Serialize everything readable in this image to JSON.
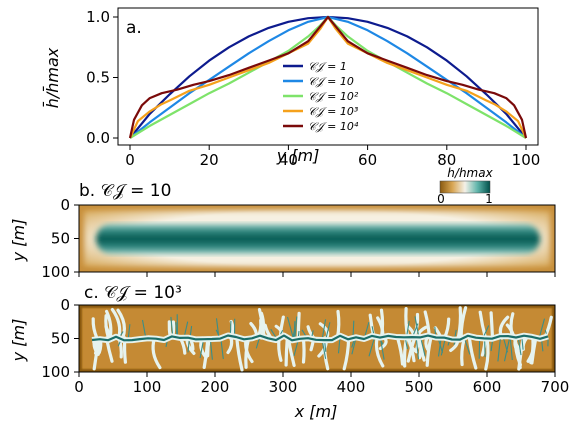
{
  "chart_data": [
    {
      "type": "line",
      "panel_label": "a.",
      "xlabel": "y [m]",
      "ylabel": "h̄/h̄max",
      "xlim": [
        0,
        100
      ],
      "ylim": [
        0,
        1
      ],
      "x_ticks": [
        "0",
        "20",
        "40",
        "60",
        "80",
        "100"
      ],
      "y_ticks": [
        "0.0",
        "0.5",
        "1.0"
      ],
      "legend_placement": "center",
      "series": [
        {
          "name": "𝒞𝒥 = 1",
          "color": "#0d1b8e",
          "x": [
            0,
            5,
            10,
            15,
            20,
            25,
            30,
            35,
            40,
            45,
            50,
            55,
            60,
            65,
            70,
            75,
            80,
            85,
            90,
            95,
            100
          ],
          "y": [
            0,
            0.2,
            0.36,
            0.51,
            0.64,
            0.75,
            0.84,
            0.91,
            0.96,
            0.99,
            1.0,
            0.99,
            0.96,
            0.91,
            0.84,
            0.75,
            0.64,
            0.51,
            0.36,
            0.2,
            0
          ]
        },
        {
          "name": "𝒞𝒥 = 10",
          "color": "#1e88e5",
          "x": [
            0,
            5,
            10,
            15,
            20,
            25,
            30,
            35,
            40,
            45,
            50,
            55,
            60,
            65,
            70,
            75,
            80,
            85,
            90,
            95,
            100
          ],
          "y": [
            0,
            0.13,
            0.25,
            0.37,
            0.48,
            0.59,
            0.7,
            0.8,
            0.89,
            0.96,
            1.0,
            0.96,
            0.89,
            0.8,
            0.7,
            0.59,
            0.48,
            0.37,
            0.25,
            0.13,
            0
          ]
        },
        {
          "name": "𝒞𝒥 = 10²",
          "color": "#7ee36a",
          "x": [
            0,
            5,
            10,
            15,
            20,
            25,
            30,
            35,
            40,
            45,
            48,
            50,
            52,
            55,
            60,
            65,
            70,
            75,
            80,
            85,
            90,
            95,
            100
          ],
          "y": [
            0,
            0.1,
            0.19,
            0.28,
            0.37,
            0.45,
            0.54,
            0.63,
            0.72,
            0.84,
            0.93,
            1.0,
            0.93,
            0.84,
            0.72,
            0.63,
            0.54,
            0.45,
            0.37,
            0.28,
            0.19,
            0.1,
            0
          ]
        },
        {
          "name": "𝒞𝒥 = 10³",
          "color": "#f5a11c",
          "x": [
            0,
            2,
            5,
            8,
            10,
            15,
            20,
            25,
            30,
            35,
            40,
            45,
            48,
            50,
            52,
            55,
            60,
            65,
            70,
            75,
            80,
            85,
            90,
            92,
            95,
            98,
            100
          ],
          "y": [
            0,
            0.14,
            0.22,
            0.28,
            0.31,
            0.39,
            0.44,
            0.5,
            0.56,
            0.62,
            0.7,
            0.78,
            0.9,
            1.0,
            0.9,
            0.78,
            0.7,
            0.62,
            0.56,
            0.5,
            0.44,
            0.39,
            0.31,
            0.28,
            0.22,
            0.14,
            0
          ]
        },
        {
          "name": "𝒞𝒥 = 10⁴",
          "color": "#7a0a0a",
          "x": [
            0,
            1,
            3,
            5,
            8,
            12,
            16,
            20,
            25,
            30,
            35,
            40,
            45,
            48,
            50,
            52,
            55,
            60,
            65,
            70,
            75,
            80,
            84,
            88,
            92,
            95,
            97,
            99,
            100
          ],
          "y": [
            0,
            0.15,
            0.27,
            0.33,
            0.37,
            0.4,
            0.44,
            0.47,
            0.52,
            0.58,
            0.64,
            0.7,
            0.8,
            0.92,
            1.0,
            0.92,
            0.8,
            0.7,
            0.64,
            0.58,
            0.52,
            0.47,
            0.44,
            0.4,
            0.37,
            0.33,
            0.27,
            0.15,
            0
          ]
        }
      ]
    },
    {
      "type": "heatmap",
      "panel_label": "b. 𝒞𝒥 = 10",
      "ylabel": "y [m]",
      "xlim": [
        0,
        700
      ],
      "ylim": [
        0,
        100
      ],
      "y_ticks": [
        "0",
        "50",
        "100"
      ],
      "colorbar": {
        "label": "h/hmax",
        "min_label": "0",
        "max_label": "1"
      }
    },
    {
      "type": "heatmap",
      "panel_label": "c. 𝒞𝒥 = 10³",
      "xlabel": "x [m]",
      "ylabel": "y [m]",
      "xlim": [
        0,
        700
      ],
      "ylim": [
        0,
        100
      ],
      "x_ticks": [
        "0",
        "100",
        "200",
        "300",
        "400",
        "500",
        "600",
        "700"
      ],
      "y_ticks": [
        "0",
        "50",
        "100"
      ]
    }
  ]
}
